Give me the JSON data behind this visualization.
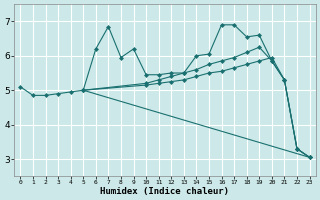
{
  "xlabel": "Humidex (Indice chaleur)",
  "xlim": [
    -0.5,
    23.5
  ],
  "ylim": [
    2.5,
    7.5
  ],
  "yticks": [
    3,
    4,
    5,
    6,
    7
  ],
  "xticks": [
    0,
    1,
    2,
    3,
    4,
    5,
    6,
    7,
    8,
    9,
    10,
    11,
    12,
    13,
    14,
    15,
    16,
    17,
    18,
    19,
    20,
    21,
    22,
    23
  ],
  "bg_color": "#cce8e8",
  "grid_color": "#ffffff",
  "line_color": "#1a7070",
  "series": [
    {
      "x": [
        0,
        1,
        2,
        3,
        4,
        5,
        6,
        7,
        8,
        9,
        10,
        11,
        12,
        13,
        14,
        15,
        16,
        17,
        18,
        19,
        20,
        21,
        22,
        23
      ],
      "y": [
        5.1,
        4.85,
        4.85,
        4.9,
        4.95,
        5.0,
        6.2,
        6.85,
        5.95,
        6.2,
        5.45,
        5.45,
        5.5,
        5.5,
        6.0,
        6.05,
        6.9,
        6.9,
        6.55,
        6.6,
        5.85,
        5.3,
        3.3,
        3.05
      ],
      "marker": true
    },
    {
      "x": [
        5,
        10,
        11,
        12,
        13,
        14,
        15,
        16,
        17,
        18,
        19,
        20,
        21,
        22,
        23
      ],
      "y": [
        5.0,
        5.15,
        5.2,
        5.25,
        5.3,
        5.4,
        5.5,
        5.55,
        5.65,
        5.75,
        5.85,
        5.95,
        5.3,
        3.3,
        3.05
      ],
      "marker": true
    },
    {
      "x": [
        5,
        10,
        11,
        12,
        13,
        14,
        15,
        16,
        17,
        18,
        19,
        20,
        21,
        22,
        23
      ],
      "y": [
        5.0,
        5.2,
        5.3,
        5.4,
        5.5,
        5.6,
        5.75,
        5.85,
        5.95,
        6.1,
        6.25,
        5.85,
        5.3,
        3.3,
        3.05
      ],
      "marker": true
    },
    {
      "x": [
        5,
        23
      ],
      "y": [
        5.0,
        3.05
      ],
      "marker": false
    }
  ]
}
